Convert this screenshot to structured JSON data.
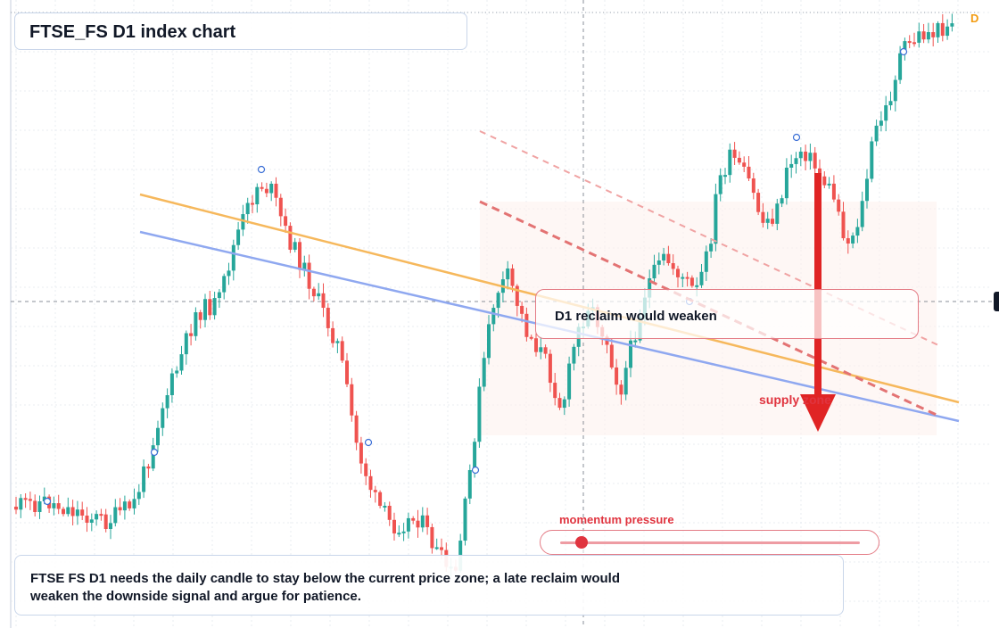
{
  "app": {
    "title": "FTSE_FS D1 index chart",
    "symbol_badge": "D"
  },
  "chart": {
    "symbol": "FTSE_FS",
    "timeframe": "D1",
    "direction": "down",
    "callout_text": "D1 reclaim would weaken",
    "zone_label": "supply zone",
    "colors": {
      "up_candle": "#26a69a",
      "down_candle": "#ef5350",
      "trendline_orange": "#f6b85c",
      "trendline_blue": "#8fa8f0",
      "signal_red": "#e02424"
    }
  },
  "momentum": {
    "label": "momentum pressure",
    "value": 0.07
  },
  "note": {
    "text": "FTSE FS D1 needs the daily candle to stay below the current price zone; a late reclaim would weaken the downside signal and argue for patience."
  }
}
